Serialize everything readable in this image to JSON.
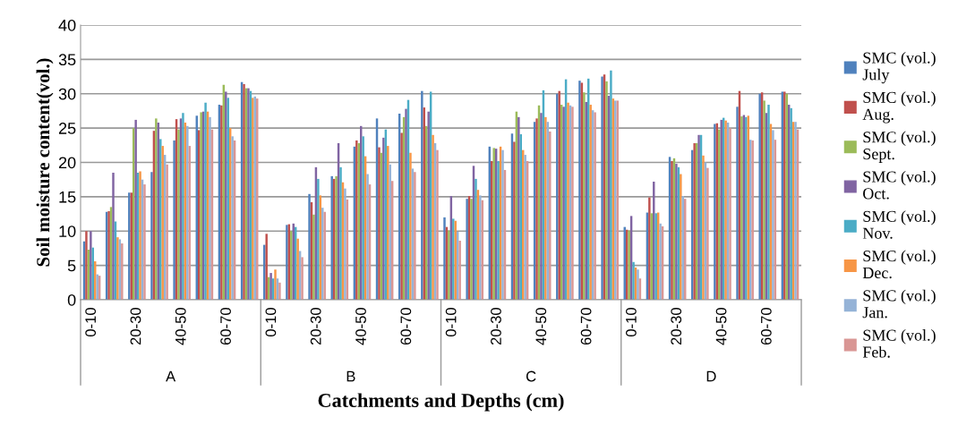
{
  "chart_data": {
    "type": "bar",
    "ylabel": "Soil moisture content(vol.)",
    "xlabel": "Catchments and Depths (cm)",
    "categories": [
      "0-10",
      null,
      "20-30",
      null,
      "40-50",
      null,
      "60-70",
      null,
      "0-10",
      null,
      "20-30",
      null,
      "40-50",
      null,
      "60-70",
      null,
      "0-10",
      null,
      "20-30",
      null,
      "40-50",
      null,
      "60-70",
      null,
      "0-10",
      null,
      "20-30",
      null,
      "40-50",
      null,
      "60-70",
      null
    ],
    "annotations": [
      "A",
      "B",
      "C",
      "D"
    ],
    "ylim": [
      0,
      40
    ],
    "yticks": [
      0,
      5,
      10,
      15,
      20,
      25,
      30,
      35,
      40
    ],
    "grid": "y",
    "legend": "right",
    "series": [
      {
        "name": "SMC (vol.) July",
        "color": "#4f81bd",
        "values": [
          8.5,
          12.8,
          15.6,
          18.6,
          23.2,
          26.8,
          28.4,
          31.7,
          8.0,
          10.9,
          15.4,
          18.0,
          22.3,
          26.4,
          27.1,
          30.4,
          12.0,
          14.7,
          22.3,
          24.2,
          25.9,
          30.0,
          31.9,
          32.5,
          10.6,
          12.7,
          20.8,
          21.8,
          25.6,
          28.1,
          30.0,
          30.3
        ]
      },
      {
        "name": "SMC (vol.) Aug.",
        "color": "#c0504d",
        "values": [
          10.0,
          12.9,
          15.6,
          24.6,
          26.3,
          24.7,
          28.3,
          31.4,
          9.6,
          11.0,
          14.2,
          17.6,
          23.2,
          22.2,
          24.3,
          28.0,
          10.6,
          15.1,
          20.2,
          23.0,
          26.4,
          30.4,
          31.6,
          32.8,
          10.2,
          14.9,
          20.2,
          22.8,
          25.7,
          30.4,
          30.2,
          30.3
        ]
      },
      {
        "name": "SMC (vol.) Sept.",
        "color": "#9bbb59",
        "values": [
          7.3,
          13.5,
          25.0,
          26.4,
          24.8,
          27.3,
          31.3,
          30.8,
          3.3,
          10.0,
          12.4,
          18.0,
          22.8,
          21.4,
          26.6,
          25.3,
          10.1,
          14.7,
          22.1,
          27.4,
          28.3,
          28.4,
          30.2,
          31.8,
          10.1,
          12.6,
          20.6,
          22.8,
          24.8,
          26.7,
          29.0,
          30.0
        ]
      },
      {
        "name": "SMC (vol.) Oct.",
        "color": "#8064a2",
        "values": [
          10.0,
          18.5,
          26.2,
          25.8,
          26.4,
          27.4,
          30.3,
          30.8,
          3.9,
          11.1,
          19.3,
          22.8,
          25.3,
          23.6,
          27.8,
          27.4,
          15.1,
          19.5,
          22.0,
          26.6,
          27.2,
          28.1,
          28.8,
          29.7,
          12.2,
          17.2,
          19.8,
          24.0,
          26.2,
          26.9,
          27.2,
          28.4
        ]
      },
      {
        "name": "SMC (vol.) Nov.",
        "color": "#4bacc6",
        "values": [
          7.6,
          11.4,
          18.5,
          23.4,
          27.2,
          28.7,
          29.4,
          30.4,
          3.1,
          10.6,
          17.6,
          19.3,
          23.8,
          24.8,
          29.1,
          30.3,
          11.8,
          17.6,
          20.2,
          24.1,
          30.5,
          32.1,
          32.2,
          33.4,
          5.5,
          12.6,
          19.3,
          24.0,
          26.5,
          26.6,
          28.4,
          27.9
        ]
      },
      {
        "name": "SMC (vol.) Dec.",
        "color": "#f79646",
        "values": [
          5.6,
          9.1,
          18.7,
          22.4,
          25.8,
          27.4,
          25.0,
          29.4,
          4.4,
          8.9,
          15.2,
          17.1,
          20.9,
          22.4,
          21.4,
          24.0,
          11.5,
          16.0,
          22.3,
          21.8,
          26.6,
          28.7,
          28.4,
          29.3,
          4.7,
          12.7,
          18.3,
          21.0,
          26.1,
          26.8,
          25.6,
          25.9
        ]
      },
      {
        "name": "SMC (vol.) Jan.",
        "color": "#95b3d7",
        "values": [
          3.7,
          8.8,
          17.5,
          21.1,
          25.3,
          26.6,
          23.8,
          29.6,
          3.1,
          7.1,
          13.4,
          16.2,
          18.3,
          19.7,
          19.1,
          22.8,
          9.9,
          15.2,
          21.8,
          21.1,
          25.9,
          28.3,
          27.6,
          29.0,
          4.4,
          11.1,
          15.1,
          20.0,
          25.8,
          23.3,
          24.7,
          25.9
        ]
      },
      {
        "name": "SMC (vol.) Feb.",
        "color": "#d99694",
        "values": [
          3.5,
          8.2,
          16.8,
          19.7,
          22.4,
          24.8,
          23.2,
          29.3,
          2.5,
          6.2,
          12.8,
          14.6,
          16.8,
          17.3,
          18.6,
          21.8,
          8.6,
          14.5,
          18.9,
          20.2,
          24.5,
          28.1,
          27.3,
          29.0,
          3.1,
          10.7,
          14.7,
          19.2,
          25.0,
          23.2,
          23.3,
          24.8
        ]
      }
    ]
  }
}
